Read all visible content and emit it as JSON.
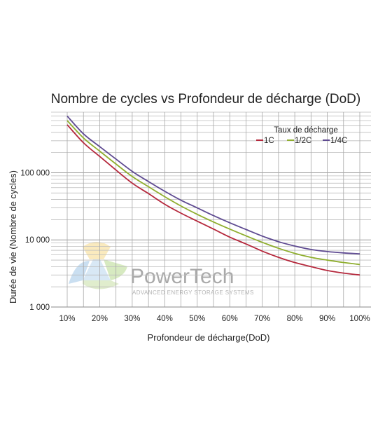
{
  "chart_data": {
    "type": "line",
    "title": "Nombre de cycles vs Profondeur de décharge (DoD)",
    "xlabel": "Profondeur de décharge(DoD)",
    "ylabel": "Durée de vie (Nombre de cycles)",
    "y_scale": "log",
    "ylim": [
      1000,
      800000
    ],
    "xlim": [
      10,
      100
    ],
    "x_ticks": [
      10,
      20,
      30,
      40,
      50,
      60,
      70,
      80,
      90,
      100
    ],
    "x_tick_labels": [
      "10%",
      "20%",
      "30%",
      "40%",
      "50%",
      "60%",
      "70%",
      "80%",
      "90%",
      "100%"
    ],
    "y_ticks": [
      1000,
      10000,
      100000
    ],
    "y_tick_labels": [
      "1 000",
      "10 000",
      "100 000"
    ],
    "grid": true,
    "legend": {
      "title": "Taux de décharge",
      "placement": "top-right"
    },
    "x": [
      10,
      15,
      20,
      25,
      30,
      35,
      40,
      45,
      50,
      55,
      60,
      65,
      70,
      75,
      80,
      85,
      90,
      95,
      100
    ],
    "series": [
      {
        "name": "1C",
        "color": "#b5283c",
        "values": [
          520000,
          280000,
          175000,
          110000,
          70000,
          49000,
          34000,
          25000,
          19000,
          14500,
          11000,
          8700,
          6800,
          5500,
          4600,
          4000,
          3500,
          3200,
          3000
        ]
      },
      {
        "name": "1/2C",
        "color": "#8fae2e",
        "values": [
          600000,
          330000,
          210000,
          135000,
          88000,
          62000,
          44000,
          32000,
          24000,
          18500,
          14500,
          11500,
          9200,
          7500,
          6300,
          5500,
          5000,
          4600,
          4300
        ]
      },
      {
        "name": "1/4C",
        "color": "#5e4a91",
        "values": [
          700000,
          380000,
          245000,
          160000,
          105000,
          74000,
          53000,
          39000,
          30000,
          23000,
          18000,
          14300,
          11400,
          9400,
          8100,
          7200,
          6700,
          6400,
          6200
        ]
      }
    ]
  },
  "watermark": {
    "name": "PowerTech",
    "tagline": "ADVANCED ENERGY STORAGE SYSTEMS"
  }
}
